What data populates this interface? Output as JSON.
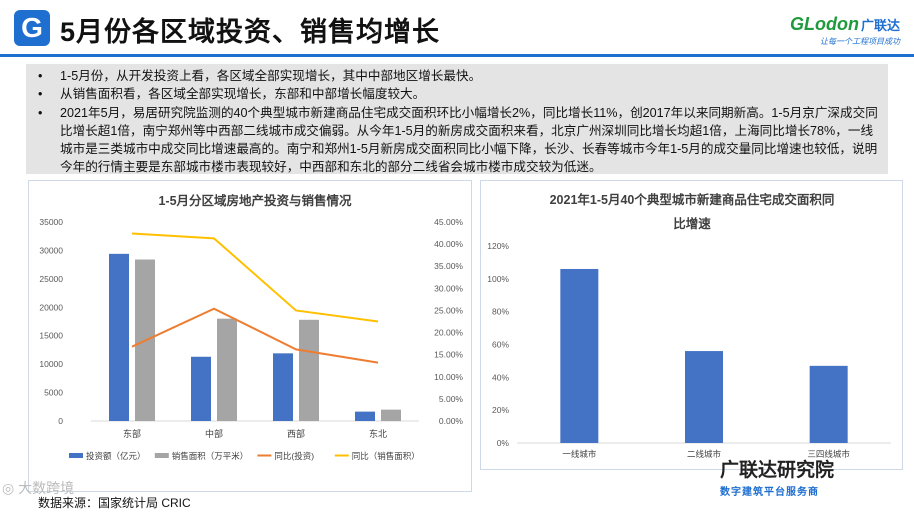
{
  "header": {
    "logo_letter": "G",
    "title": "5月份各区域投资、销售均增长",
    "brand_name": "GLodon",
    "brand_cn": "广联达",
    "brand_slogan": "让每一个工程项目成功"
  },
  "bullets": [
    "1-5月份，从开发投资上看，各区域全部实现增长，其中中部地区增长最快。",
    " 从销售面积看，各区域全部实现增长，东部和中部增长幅度较大。",
    "2021年5月，易居研究院监测的40个典型城市新建商品住宅成交面积环比小幅增长2%，同比增长11%，创2017年以来同期新高。1-5月京广深成交同比增长超1倍，南宁郑州等中西部二线城市成交偏弱。从今年1-5月的新房成交面积来看，北京广州深圳同比增长均超1倍，上海同比增长78%，一线城市是三类城市中成交同比增速最高的。南宁和郑州1-5月新房成交面积同比小幅下降，长沙、长春等城市今年1-5月的成交量同比增速也较低，说明今年的行情主要是东部城市楼市表现较好，中西部和东北的部分二线省会城市楼市成交较为低迷。"
  ],
  "chart_data": [
    {
      "type": "bar",
      "title": "1-5月分区域房地产投资与销售情况",
      "categories": [
        "东部",
        "中部",
        "西部",
        "东北"
      ],
      "y_left_ticks": [
        "0",
        "5000",
        "10000",
        "15000",
        "20000",
        "25000",
        "30000",
        "35000"
      ],
      "y_right_ticks": [
        "0.00%",
        "5.00%",
        "10.00%",
        "15.00%",
        "20.00%",
        "25.00%",
        "30.00%",
        "35.00%",
        "40.00%",
        "45.00%"
      ],
      "ylim_left": [
        0,
        35000
      ],
      "ylim_right": [
        0,
        45
      ],
      "series": [
        {
          "name": "投资额（亿元）",
          "kind": "bar",
          "axis": "left",
          "color": "#4472c4",
          "values": [
            29400,
            11300,
            11900,
            1650
          ]
        },
        {
          "name": "销售面积（万平米）",
          "kind": "bar",
          "axis": "left",
          "color": "#a5a5a5",
          "values": [
            28400,
            18000,
            17800,
            2000
          ]
        },
        {
          "name": "同比(投资)",
          "kind": "line",
          "axis": "right",
          "color": "#ed7d31",
          "values": [
            16.8,
            25.4,
            16.2,
            13.2
          ]
        },
        {
          "name": "同比（销售面积）",
          "kind": "line",
          "axis": "right",
          "color": "#ffc000",
          "values": [
            42.4,
            41.3,
            25.0,
            22.5
          ]
        }
      ]
    },
    {
      "type": "bar",
      "title": "2021年1-5月40个典型城市新建商品住宅成交面积同比增速",
      "title_lines": [
        "2021年1-5月40个典型城市新建商品住宅成交面积同",
        "比增速"
      ],
      "categories": [
        "一线城市",
        "二线城市",
        "三四线城市"
      ],
      "y_ticks": [
        "0%",
        "20%",
        "40%",
        "60%",
        "80%",
        "100%",
        "120%"
      ],
      "ylim": [
        0,
        120
      ],
      "series": [
        {
          "name": "",
          "color": "#4472c4",
          "values": [
            106,
            56,
            47
          ]
        }
      ]
    }
  ],
  "footer": {
    "source": "数据来源：国家统计局 CRIC",
    "watermark_left": "◎ 大数跨境",
    "watermark_name": "广联达研究院",
    "watermark_sub": "数字建筑平台服务商"
  }
}
